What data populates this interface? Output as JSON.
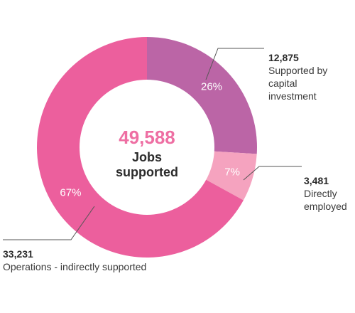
{
  "chart_data": {
    "type": "pie",
    "center": {
      "total": "49,588",
      "caption_line1": "Jobs",
      "caption_line2": "supported"
    },
    "slices": [
      {
        "key": "capital",
        "value": 12875,
        "value_label": "12,875",
        "percent": 26,
        "percent_label": "26%",
        "label_lines": [
          "Supported by",
          "capital",
          "investment"
        ],
        "color": "#bb65a6"
      },
      {
        "key": "direct",
        "value": 3481,
        "value_label": "3,481",
        "percent": 7,
        "percent_label": "7%",
        "label_lines": [
          "Directly",
          "employed"
        ],
        "color": "#f5a3bf"
      },
      {
        "key": "operations",
        "value": 33231,
        "value_label": "33,231",
        "percent": 67,
        "percent_label": "67%",
        "label_lines": [
          "Operations - indirectly supported"
        ],
        "color": "#ec5f9d"
      }
    ]
  }
}
